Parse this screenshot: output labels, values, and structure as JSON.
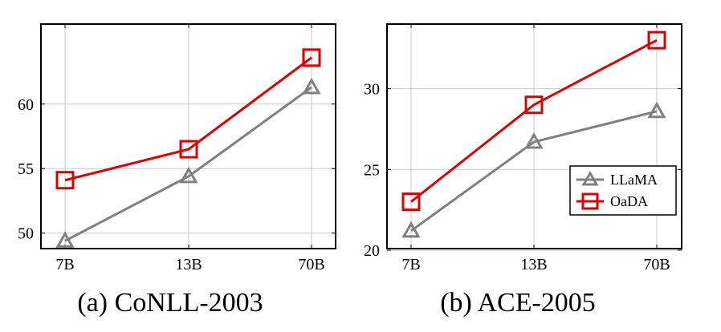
{
  "chart_data": [
    {
      "type": "line",
      "caption": "(a) CoNLL-2003",
      "categories": [
        "7B",
        "13B",
        "70B"
      ],
      "yticks": [
        50,
        55,
        60
      ],
      "ylim": [
        48.8,
        66.2
      ],
      "grid": true,
      "series": [
        {
          "name": "LLaMA",
          "color": "#808080",
          "marker": "triangle",
          "values": [
            49.4,
            54.4,
            61.3
          ]
        },
        {
          "name": "OaDA",
          "color": "#e00000",
          "marker": "square",
          "values": [
            54.1,
            56.5,
            63.6
          ]
        }
      ]
    },
    {
      "type": "line",
      "caption": "(b) ACE-2005",
      "categories": [
        "7B",
        "13B",
        "70B"
      ],
      "yticks": [
        20,
        25,
        30
      ],
      "ylim": [
        20.1,
        34.0
      ],
      "grid": true,
      "legend": {
        "position": "bottom-right",
        "entries": [
          "LLaMA",
          "OaDA"
        ]
      },
      "series": [
        {
          "name": "LLaMA",
          "color": "#808080",
          "marker": "triangle",
          "values": [
            21.2,
            26.7,
            28.6
          ]
        },
        {
          "name": "OaDA",
          "color": "#e00000",
          "marker": "square",
          "values": [
            23.0,
            29.0,
            33.0
          ]
        }
      ]
    }
  ]
}
